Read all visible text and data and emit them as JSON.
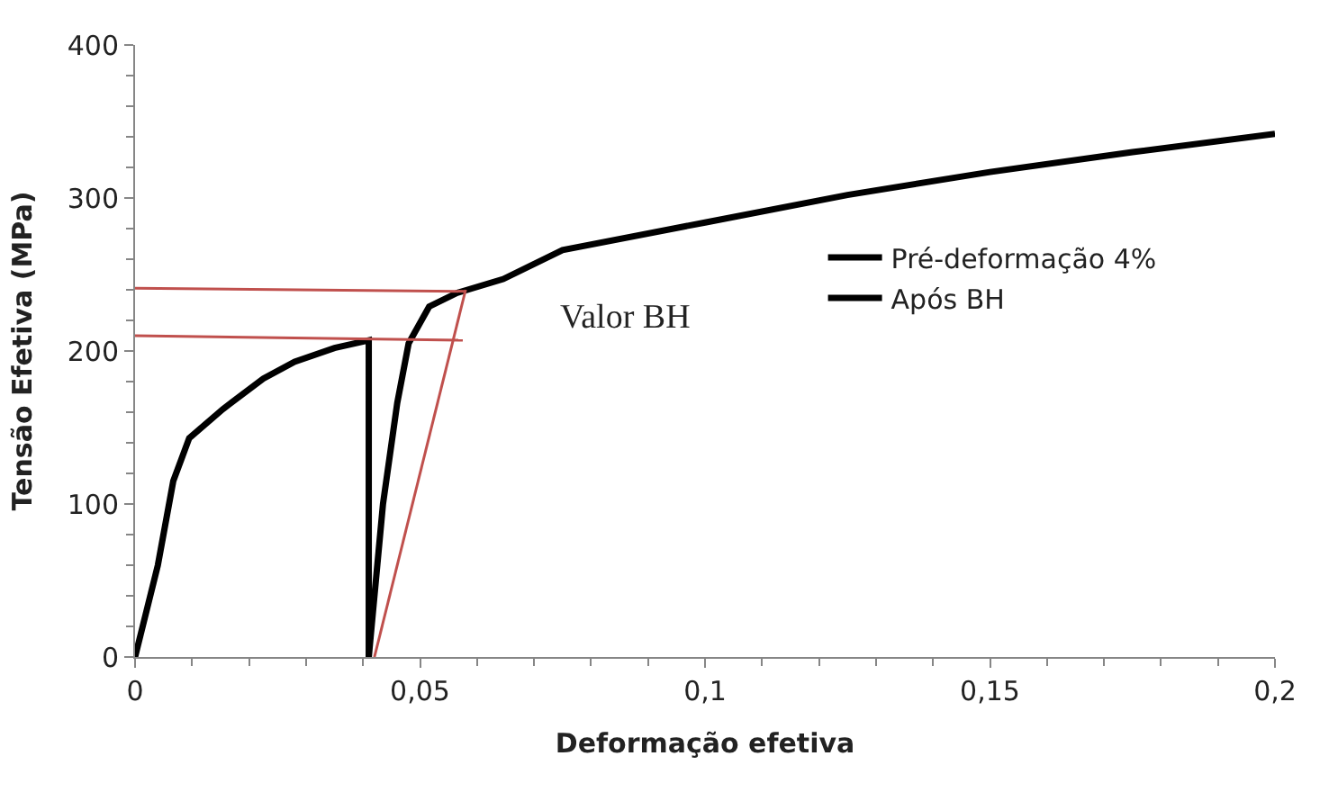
{
  "chart_data": {
    "type": "line",
    "xlabel": "Deformação efetiva",
    "ylabel": "Tensão Efetiva (MPa)",
    "xlim": [
      0,
      0.2
    ],
    "ylim": [
      0,
      400
    ],
    "xticks": [
      0,
      {
        "value": 0.05,
        "label": "0,05"
      },
      {
        "value": 0.1,
        "label": "0,1"
      },
      {
        "value": 0.15,
        "label": "0,15"
      },
      {
        "value": 0.2,
        "label": "0,2"
      }
    ],
    "yticks": [
      0,
      100,
      200,
      300,
      400
    ],
    "legend": "right",
    "marker": "none",
    "line_style": "solid",
    "series": [
      {
        "name": "Pré-deformação 4%",
        "color": "#000000",
        "x": [
          0,
          0.004,
          0.0067,
          0.0095,
          0.0154,
          0.0225,
          0.028,
          0.035,
          0.041,
          0.041
        ],
        "values": [
          0,
          60,
          115,
          143,
          162,
          182,
          193,
          202,
          207,
          0
        ]
      },
      {
        "name": "Após BH",
        "color": "#000000",
        "x": [
          0.041,
          0.0435,
          0.046,
          0.048,
          0.0516,
          0.0565,
          0.0646,
          0.075,
          0.1,
          0.125,
          0.15,
          0.175,
          0.2
        ],
        "values": [
          0,
          100,
          166,
          205,
          229,
          238,
          247,
          266,
          284,
          302,
          317,
          330,
          342
        ]
      },
      {
        "color": "#c0504d",
        "x": [
          0,
          0.058
        ],
        "values": [
          241,
          239
        ]
      },
      {
        "color": "#c0504d",
        "x": [
          0,
          0.0575
        ],
        "values": [
          210,
          207
        ]
      },
      {
        "color": "#c0504d",
        "x": [
          0.042,
          0.058
        ],
        "values": [
          0,
          240
        ]
      }
    ],
    "annotations": [
      "Valor BH"
    ]
  }
}
